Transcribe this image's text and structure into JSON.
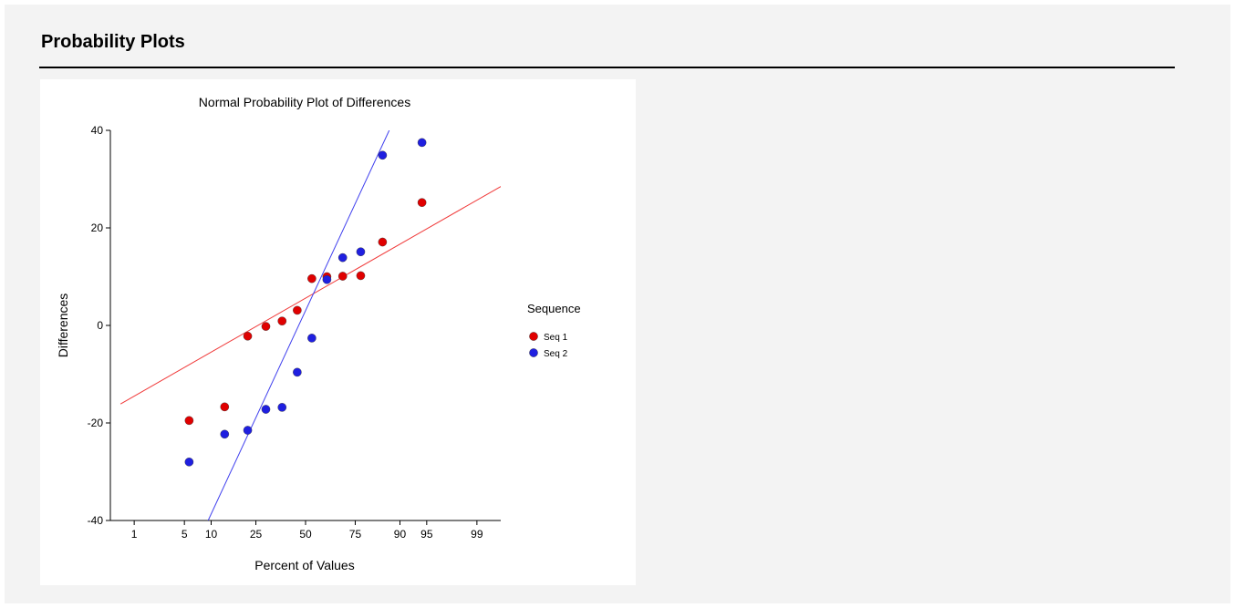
{
  "page": {
    "heading": "Probability Plots"
  },
  "chart_data": {
    "type": "scatter",
    "title": "Normal Probability Plot of Differences",
    "xlabel": "Percent of Values",
    "ylabel": "Differences",
    "xscale": "normal-probability",
    "xticks": [
      1,
      5,
      10,
      25,
      50,
      75,
      90,
      95,
      99
    ],
    "xtick_labels": [
      "1",
      "5",
      "10",
      "25",
      "50",
      "75",
      "90",
      "95",
      "99"
    ],
    "yticks": [
      -40,
      -20,
      0,
      20,
      40
    ],
    "ytick_labels": [
      "-40",
      "-20",
      "0",
      "20",
      "40"
    ],
    "ylim": [
      -40,
      40
    ],
    "legend": {
      "title": "Sequence",
      "placement": "right"
    },
    "series": [
      {
        "name": "Seq 1",
        "color": "#e00000",
        "line_color": "#f03a3a",
        "points": [
          {
            "x": 5.7,
            "y": -19.5
          },
          {
            "x": 13.6,
            "y": -16.7
          },
          {
            "x": 21.6,
            "y": -2.2
          },
          {
            "x": 29.5,
            "y": -0.2
          },
          {
            "x": 37.5,
            "y": 0.9
          },
          {
            "x": 45.5,
            "y": 3.1
          },
          {
            "x": 53.4,
            "y": 9.6
          },
          {
            "x": 61.4,
            "y": 10.0
          },
          {
            "x": 69.3,
            "y": 10.1
          },
          {
            "x": 77.3,
            "y": 10.2
          },
          {
            "x": 85.2,
            "y": 17.1
          },
          {
            "x": 94.3,
            "y": 25.2
          }
        ],
        "fit_line": [
          {
            "x": 0.6,
            "y": -16.1
          },
          {
            "x": 99.6,
            "y": 28.5
          }
        ]
      },
      {
        "name": "Seq 2",
        "color": "#1f1fe0",
        "line_color": "#4040ee",
        "points": [
          {
            "x": 5.7,
            "y": -28.0
          },
          {
            "x": 13.6,
            "y": -22.3
          },
          {
            "x": 21.6,
            "y": -21.5
          },
          {
            "x": 29.5,
            "y": -17.2
          },
          {
            "x": 37.5,
            "y": -16.8
          },
          {
            "x": 45.5,
            "y": -9.6
          },
          {
            "x": 53.4,
            "y": -2.6
          },
          {
            "x": 61.4,
            "y": 9.4
          },
          {
            "x": 69.3,
            "y": 13.9
          },
          {
            "x": 77.3,
            "y": 15.1
          },
          {
            "x": 85.2,
            "y": 34.9
          },
          {
            "x": 94.3,
            "y": 37.5
          }
        ],
        "fit_line": [
          {
            "x": 9.3,
            "y": -40.0
          },
          {
            "x": 87.2,
            "y": 40.0
          }
        ]
      }
    ]
  }
}
